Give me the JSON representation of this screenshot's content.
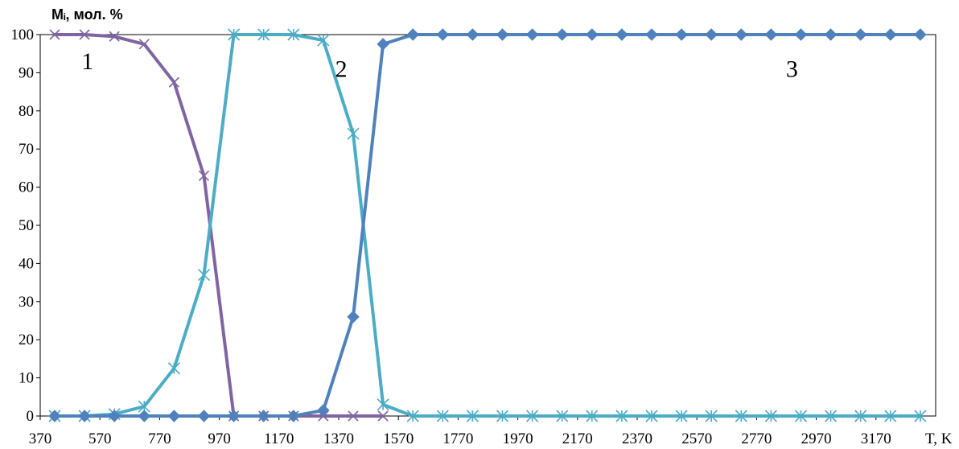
{
  "chart_data": {
    "type": "line",
    "ylabel": "Mᵢ, мол. %",
    "xlabel": "T, K",
    "xlim": [
      370,
      3370
    ],
    "ylim": [
      0,
      100
    ],
    "x_ticks": [
      370,
      570,
      770,
      970,
      1170,
      1370,
      1570,
      1770,
      1970,
      2170,
      2370,
      2570,
      2770,
      2970,
      3170
    ],
    "y_ticks": [
      0,
      10,
      20,
      30,
      40,
      50,
      60,
      70,
      80,
      90,
      100
    ],
    "grid": false,
    "x": [
      370,
      470,
      570,
      670,
      770,
      870,
      970,
      1070,
      1170,
      1270,
      1370,
      1470,
      1570,
      1670,
      1770,
      1870,
      1970,
      2070,
      2170,
      2270,
      2370,
      2470,
      2570,
      2670,
      2770,
      2870,
      2970,
      3070,
      3170,
      3270
    ],
    "series": [
      {
        "id": "s1",
        "color": "#8064a2",
        "marker": "x",
        "values": [
          100,
          100,
          99.5,
          97.5,
          87.5,
          63,
          0,
          0,
          0,
          0,
          0,
          0,
          null,
          null,
          null,
          null,
          null,
          null,
          null,
          null,
          null,
          null,
          null,
          null,
          null,
          null,
          null,
          null,
          null,
          null
        ]
      },
      {
        "id": "s2",
        "color": "#4bacc6",
        "marker": "asterisk",
        "values": [
          0,
          0,
          0.5,
          2.5,
          12.5,
          37,
          100,
          100,
          100,
          98.5,
          74,
          3,
          0,
          0,
          0,
          0,
          0,
          0,
          0,
          0,
          0,
          0,
          0,
          0,
          0,
          0,
          0,
          0,
          0,
          0
        ]
      },
      {
        "id": "s3",
        "color": "#4f81bd",
        "marker": "diamond",
        "values": [
          0,
          0,
          0,
          0,
          0,
          0,
          0,
          0,
          0,
          1.5,
          26,
          97.5,
          100,
          100,
          100,
          100,
          100,
          100,
          100,
          100,
          100,
          100,
          100,
          100,
          100,
          100,
          100,
          100,
          100,
          100
        ]
      }
    ],
    "annotations": [
      {
        "text": "1",
        "x": 480,
        "y": 93
      },
      {
        "text": "2",
        "x": 1330,
        "y": 91
      },
      {
        "text": "3",
        "x": 2840,
        "y": 91
      }
    ]
  }
}
